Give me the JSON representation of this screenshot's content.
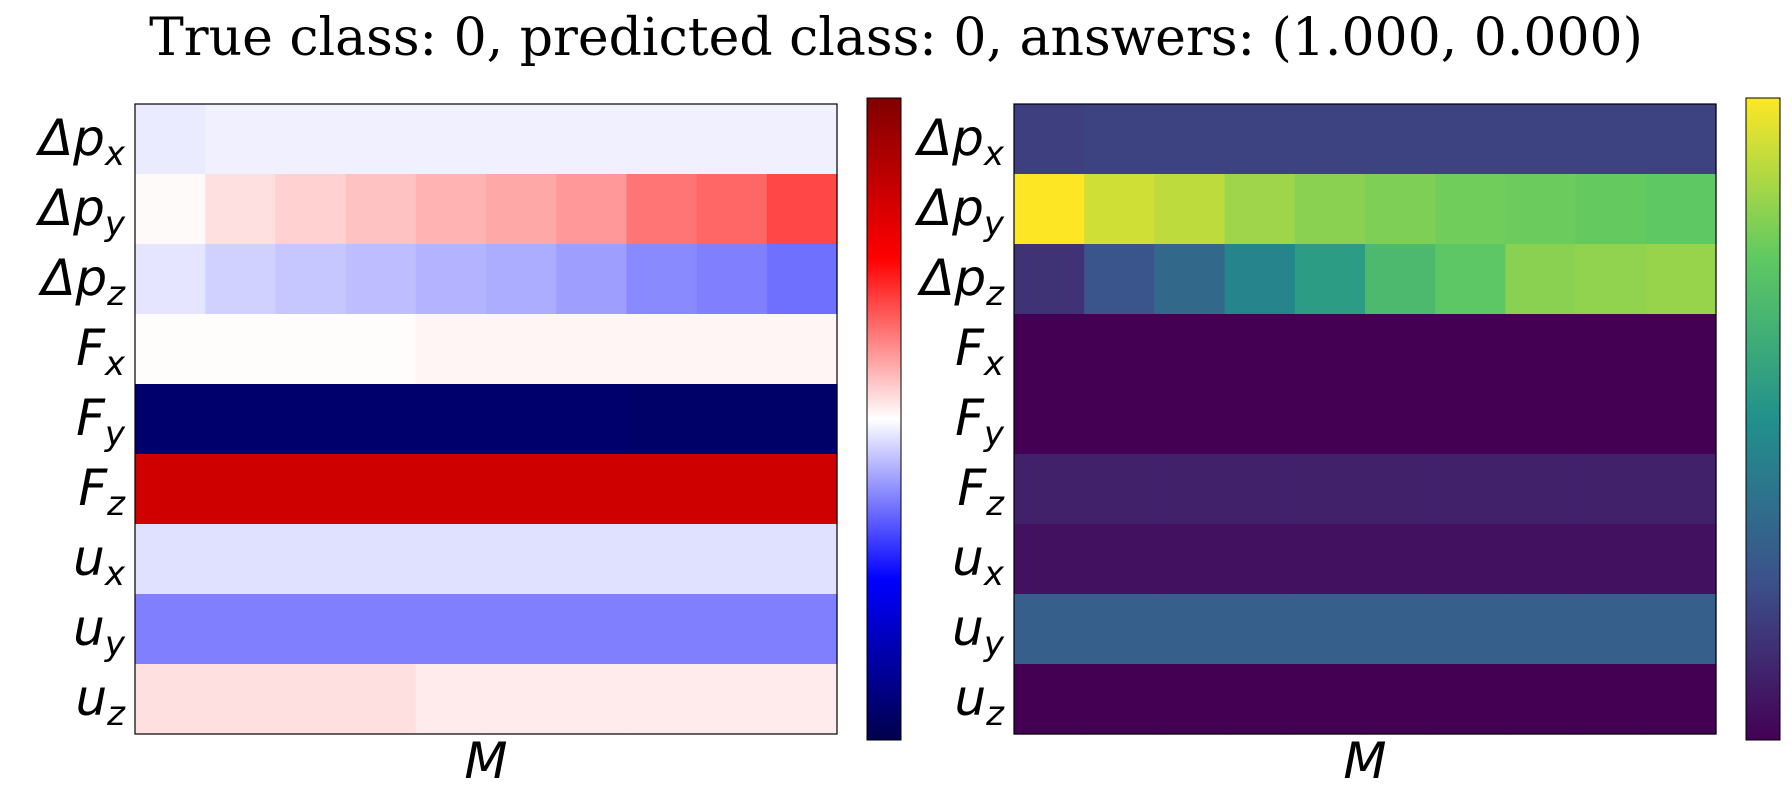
{
  "title": "True class: 0, predicted class: 0, answers: (1.000, 0.000)",
  "colors": {
    "seismic": [
      "#00004c",
      "#0000ff",
      "#ffffff",
      "#ff0000",
      "#7f0000"
    ],
    "viridis": [
      "#440154",
      "#3b528b",
      "#21918c",
      "#5ec962",
      "#fde725"
    ]
  },
  "chart_data": [
    {
      "type": "heatmap",
      "colormap": "seismic",
      "xlabel": "M",
      "vmin": -1,
      "vmax": 1,
      "colorbar": true,
      "row_labels": [
        {
          "base": "Δp",
          "sub": "x"
        },
        {
          "base": "Δp",
          "sub": "y"
        },
        {
          "base": "Δp",
          "sub": "z"
        },
        {
          "base": "F",
          "sub": "x"
        },
        {
          "base": "F",
          "sub": "y"
        },
        {
          "base": "F",
          "sub": "z"
        },
        {
          "base": "u",
          "sub": "x"
        },
        {
          "base": "u",
          "sub": "y"
        },
        {
          "base": "u",
          "sub": "z"
        }
      ],
      "values": [
        [
          -0.04,
          -0.03,
          -0.03,
          -0.03,
          -0.03,
          -0.03,
          -0.03,
          -0.03,
          -0.03,
          -0.03
        ],
        [
          0.01,
          0.06,
          0.09,
          0.12,
          0.15,
          0.17,
          0.2,
          0.27,
          0.3,
          0.36
        ],
        [
          -0.05,
          -0.09,
          -0.11,
          -0.13,
          -0.15,
          -0.16,
          -0.19,
          -0.23,
          -0.25,
          -0.28
        ],
        [
          0.005,
          0.005,
          0.005,
          0.005,
          0.02,
          0.02,
          0.02,
          0.02,
          0.02,
          0.02
        ],
        [
          -0.91,
          -0.91,
          -0.91,
          -0.91,
          -0.91,
          -0.91,
          -0.91,
          -0.92,
          -0.92,
          -0.92
        ],
        [
          0.69,
          0.69,
          0.69,
          0.69,
          0.69,
          0.69,
          0.69,
          0.69,
          0.69,
          0.69
        ],
        [
          -0.06,
          -0.06,
          -0.06,
          -0.06,
          -0.06,
          -0.06,
          -0.06,
          -0.06,
          -0.06,
          -0.06
        ],
        [
          -0.25,
          -0.25,
          -0.25,
          -0.25,
          -0.25,
          -0.25,
          -0.25,
          -0.25,
          -0.25,
          -0.25
        ],
        [
          0.06,
          0.06,
          0.06,
          0.06,
          0.04,
          0.04,
          0.04,
          0.04,
          0.04,
          0.04
        ]
      ]
    },
    {
      "type": "heatmap",
      "colormap": "viridis",
      "xlabel": "M",
      "vmin": 0,
      "vmax": 1,
      "colorbar": true,
      "row_labels": [
        {
          "base": "Δp",
          "sub": "x"
        },
        {
          "base": "Δp",
          "sub": "y"
        },
        {
          "base": "Δp",
          "sub": "z"
        },
        {
          "base": "F",
          "sub": "x"
        },
        {
          "base": "F",
          "sub": "y"
        },
        {
          "base": "F",
          "sub": "z"
        },
        {
          "base": "u",
          "sub": "x"
        },
        {
          "base": "u",
          "sub": "y"
        },
        {
          "base": "u",
          "sub": "z"
        }
      ],
      "values": [
        [
          0.19,
          0.2,
          0.2,
          0.2,
          0.2,
          0.2,
          0.2,
          0.2,
          0.2,
          0.2
        ],
        [
          1.0,
          0.93,
          0.9,
          0.85,
          0.82,
          0.8,
          0.78,
          0.77,
          0.76,
          0.75
        ],
        [
          0.15,
          0.26,
          0.34,
          0.45,
          0.55,
          0.68,
          0.74,
          0.82,
          0.83,
          0.84
        ],
        [
          0.0,
          0.0,
          0.0,
          0.0,
          0.0,
          0.0,
          0.0,
          0.0,
          0.0,
          0.0
        ],
        [
          0.0,
          0.0,
          0.0,
          0.0,
          0.0,
          0.0,
          0.0,
          0.0,
          0.0,
          0.0
        ],
        [
          0.1,
          0.1,
          0.1,
          0.1,
          0.1,
          0.1,
          0.1,
          0.1,
          0.1,
          0.1
        ],
        [
          0.05,
          0.05,
          0.05,
          0.05,
          0.05,
          0.05,
          0.05,
          0.05,
          0.05,
          0.05
        ],
        [
          0.3,
          0.3,
          0.3,
          0.3,
          0.3,
          0.3,
          0.3,
          0.3,
          0.3,
          0.3
        ],
        [
          0.0,
          0.0,
          0.0,
          0.0,
          0.0,
          0.0,
          0.0,
          0.0,
          0.0,
          0.0
        ]
      ]
    }
  ]
}
